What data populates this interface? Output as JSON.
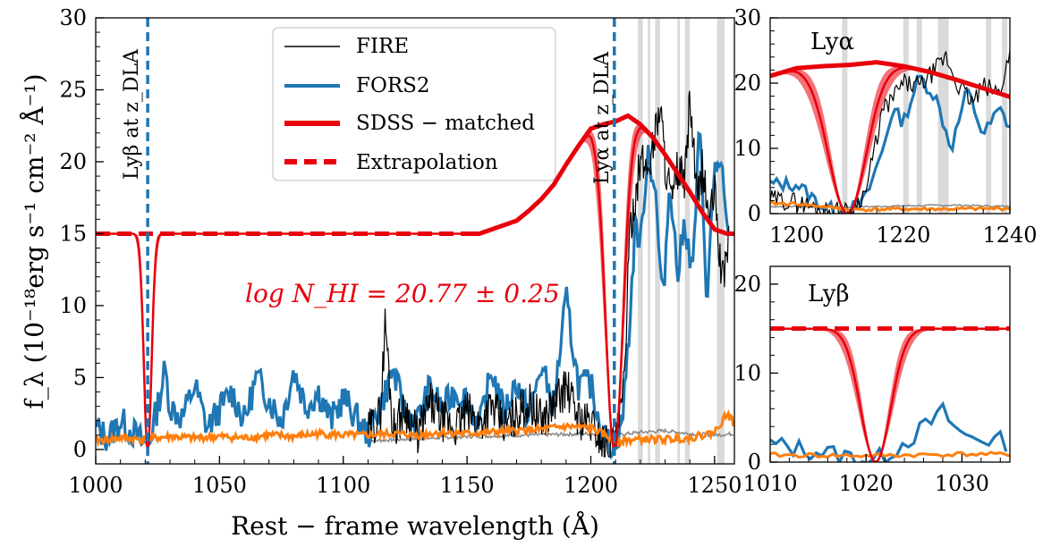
{
  "colors": {
    "fire": "#000000",
    "fors2": "#1f77b4",
    "sdss": "#e8000b",
    "band": "#e8000b",
    "error_fors2": "#ff7f0e",
    "error_fire": "#888888",
    "mask": "#d3d3d3"
  },
  "labels": {
    "xlabel": "Rest − frame wavelength (Å)",
    "ylabel": "f_λ (10⁻¹⁸erg s⁻¹ cm⁻² Å⁻¹)",
    "lyb_line": "Lyβ at z_DLA",
    "lya_line": "Lyα at z_DLA",
    "annotation": "log N_HI = 20.77 ± 0.25",
    "inset_lya_title": "Lyα",
    "inset_lyb_title": "Lyβ"
  },
  "legend": {
    "placement": "upper-center",
    "items": [
      {
        "label": "FIRE",
        "style": "thin-solid",
        "color_key": "fire"
      },
      {
        "label": "FORS2",
        "style": "medium-solid",
        "color_key": "fors2"
      },
      {
        "label": "SDSS − matched",
        "style": "thick-solid",
        "color_key": "sdss"
      },
      {
        "label": "Extrapolation",
        "style": "thick-dashed",
        "color_key": "sdss"
      }
    ]
  },
  "chart_data": [
    {
      "panel": "main",
      "type": "line",
      "xlabel": "Rest − frame wavelength (Å)",
      "ylabel": "f_λ (10⁻¹⁸erg s⁻¹ cm⁻² Å⁻¹)",
      "xlim": [
        1000,
        1258
      ],
      "ylim": [
        -1,
        30
      ],
      "xticks": [
        1000,
        1050,
        1100,
        1150,
        1200,
        1250
      ],
      "yticks": [
        0,
        5,
        10,
        15,
        20,
        25,
        30
      ],
      "vlines": [
        1021,
        1209.5
      ],
      "masked_regions": [
        [
          1219,
          1221
        ],
        [
          1223,
          1224
        ],
        [
          1226,
          1228
        ],
        [
          1235,
          1236
        ],
        [
          1238,
          1240
        ],
        [
          1251,
          1254
        ]
      ],
      "annotation": "log N_HI = 20.77 ± 0.25",
      "series": [
        {
          "name": "SDSS − matched",
          "x": [
            1150,
            1155,
            1160,
            1170,
            1175,
            1180,
            1185,
            1190,
            1195,
            1200,
            1205,
            1210,
            1215,
            1220,
            1225,
            1230,
            1235,
            1240,
            1245,
            1250,
            1255,
            1258
          ],
          "y": [
            15,
            15,
            15.3,
            15.9,
            16.6,
            17.4,
            18.4,
            19.8,
            21.1,
            22.3,
            22.6,
            22.8,
            23.2,
            22.6,
            21.7,
            20.5,
            19.2,
            17.9,
            16.5,
            15.3,
            15.0,
            15.0
          ]
        },
        {
          "name": "Extrapolation",
          "x": [
            1000,
            1150
          ],
          "y": [
            15,
            15
          ]
        },
        {
          "name": "FIRE",
          "x": [
            1110,
            1115,
            1117,
            1120,
            1125,
            1130,
            1135,
            1140,
            1145,
            1150,
            1155,
            1160,
            1165,
            1170,
            1175,
            1180,
            1185,
            1190,
            1195,
            1200,
            1205,
            1210,
            1213,
            1216,
            1220,
            1223,
            1226,
            1228,
            1230,
            1233,
            1235,
            1238,
            1240,
            1243,
            1245,
            1248,
            1250,
            1253,
            1256
          ],
          "y": [
            1.2,
            2.5,
            9.0,
            1.5,
            2.8,
            1.0,
            3.2,
            2.0,
            1.5,
            2.6,
            1.8,
            3.0,
            1.6,
            2.4,
            3.3,
            2.0,
            3.1,
            4.4,
            2.2,
            1.8,
            0.5,
            0.3,
            3.5,
            15.5,
            20.0,
            19.5,
            22.0,
            24.0,
            20.0,
            17.0,
            19.5,
            18.5,
            24.5,
            17.0,
            19.5,
            16.0,
            18.0,
            11.5,
            15.0
          ]
        },
        {
          "name": "FORS2",
          "x": [
            1000,
            1005,
            1010,
            1015,
            1019,
            1021,
            1023,
            1026,
            1028,
            1030,
            1035,
            1040,
            1045,
            1050,
            1055,
            1060,
            1065,
            1070,
            1075,
            1080,
            1085,
            1090,
            1095,
            1100,
            1110,
            1115,
            1120,
            1125,
            1130,
            1135,
            1140,
            1145,
            1150,
            1155,
            1160,
            1165,
            1170,
            1175,
            1180,
            1185,
            1190,
            1195,
            1200,
            1205,
            1208,
            1211,
            1213,
            1216,
            1218,
            1220,
            1223,
            1226,
            1229,
            1232,
            1235,
            1238,
            1241,
            1244,
            1247,
            1250,
            1253,
            1256
          ],
          "y": [
            1.5,
            0.8,
            2.0,
            1.2,
            0.5,
            0.2,
            1.5,
            3.8,
            5.6,
            3.0,
            2.2,
            4.5,
            1.5,
            2.8,
            4.0,
            2.0,
            5.0,
            3.5,
            2.0,
            5.5,
            3.0,
            4.0,
            2.0,
            3.6,
            1.0,
            3.0,
            5.5,
            2.5,
            2.0,
            4.3,
            2.8,
            4.0,
            3.5,
            1.5,
            5.5,
            2.5,
            4.8,
            2.2,
            5.8,
            3.0,
            10.5,
            4.5,
            4.5,
            1.0,
            0.3,
            1.0,
            2.5,
            9.5,
            16.0,
            14.0,
            21.0,
            18.0,
            10.0,
            19.0,
            12.0,
            16.0,
            12.0,
            22.5,
            10.0,
            20.0,
            19.0,
            13.5
          ]
        },
        {
          "name": "error_fors2",
          "x": [
            1000,
            1010,
            1020,
            1030,
            1040,
            1050,
            1060,
            1070,
            1080,
            1090,
            1100,
            1110,
            1120,
            1130,
            1140,
            1150,
            1160,
            1170,
            1180,
            1190,
            1200,
            1210,
            1220,
            1230,
            1240,
            1250,
            1255,
            1258
          ],
          "y": [
            0.6,
            0.8,
            0.7,
            0.9,
            0.8,
            0.9,
            0.8,
            1.0,
            0.9,
            1.1,
            1.0,
            1.0,
            1.1,
            1.0,
            1.2,
            1.1,
            1.2,
            1.3,
            1.4,
            1.6,
            1.5,
            0.6,
            0.7,
            0.7,
            0.8,
            1.2,
            2.5,
            1.8
          ]
        },
        {
          "name": "error_fire",
          "x": [
            1110,
            1150,
            1200,
            1210,
            1220,
            1230,
            1240,
            1250,
            1258
          ],
          "y": [
            0.6,
            0.9,
            1.1,
            1.0,
            1.2,
            1.3,
            1.1,
            1.0,
            1.1
          ]
        }
      ],
      "model_profile": {
        "center": 1021.0,
        "width": 2.2,
        "continuum_level": 15,
        "center_lya": 1209.5,
        "width_lya": 5.0,
        "log_NHI": 20.77,
        "err": 0.25
      }
    },
    {
      "panel": "inset-lya",
      "type": "line",
      "title": "Lyα",
      "xlim": [
        1195,
        1240
      ],
      "ylim": [
        0,
        30
      ],
      "xticks": [
        1200,
        1220,
        1240
      ],
      "yticks": [
        0,
        10,
        20,
        30
      ],
      "masked_regions": [
        [
          1208.5,
          1209.5
        ],
        [
          1220,
          1221
        ],
        [
          1222.5,
          1223.5
        ],
        [
          1226.5,
          1228.5
        ],
        [
          1235.5,
          1236.5
        ],
        [
          1238.5,
          1239.5
        ]
      ]
    },
    {
      "panel": "inset-lyb",
      "type": "line",
      "title": "Lyβ",
      "xlim": [
        1010,
        1035
      ],
      "ylim": [
        0,
        22
      ],
      "xticks": [
        1010,
        1020,
        1030
      ],
      "yticks": [
        0,
        10,
        20
      ]
    }
  ]
}
